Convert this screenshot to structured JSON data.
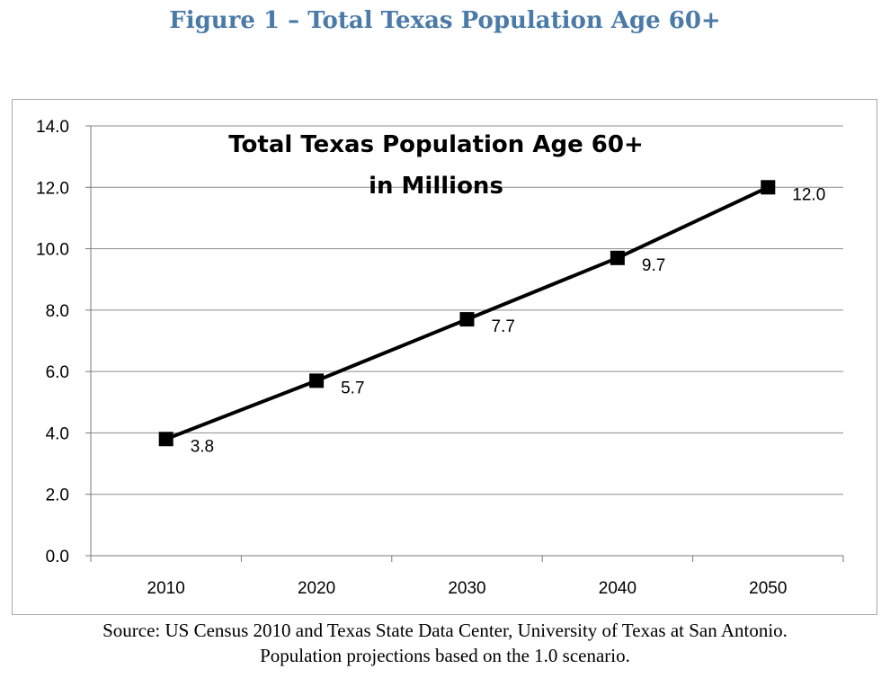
{
  "figure_title": "Figure 1 – Total Texas Population Age 60+",
  "source_lines": [
    "Source: US Census 2010 and Texas State Data Center, University of Texas at San Antonio.",
    "Population projections based on the 1.0 scenario."
  ],
  "chart_data": {
    "type": "line",
    "title_lines": [
      "Total Texas Population Age 60+",
      "in Millions"
    ],
    "categories": [
      "2010",
      "2020",
      "2030",
      "2040",
      "2050"
    ],
    "series": [
      {
        "values": [
          3.8,
          5.7,
          7.7,
          9.7,
          12.0
        ]
      }
    ],
    "data_labels": [
      "3.8",
      "5.7",
      "7.7",
      "9.7",
      "12.0"
    ],
    "ylim": [
      0,
      14
    ],
    "yticks": [
      "0.0",
      "2.0",
      "4.0",
      "6.0",
      "8.0",
      "10.0",
      "12.0",
      "14.0"
    ],
    "ytick_values": [
      0,
      2,
      4,
      6,
      8,
      10,
      12,
      14
    ],
    "grid": true,
    "line_color": "#000000",
    "gridline_color": "#8c8c8c",
    "marker": "square"
  }
}
